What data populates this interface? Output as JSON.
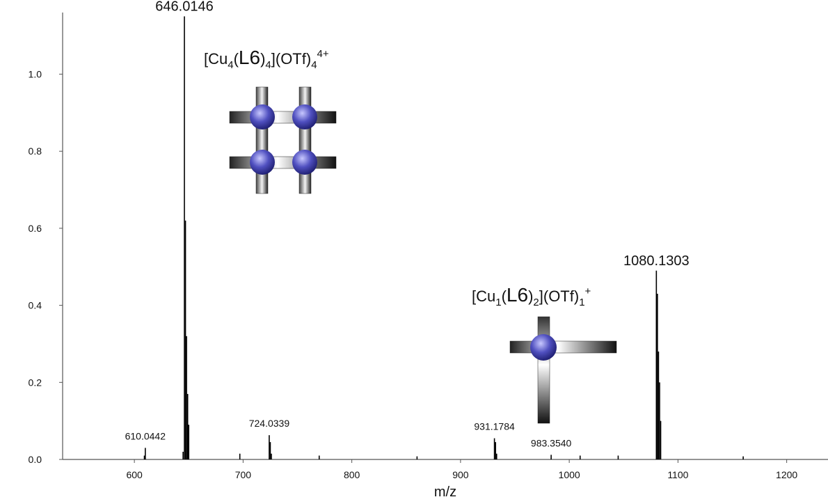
{
  "chart_data": {
    "type": "stem",
    "x_label": "m/z",
    "x": [
      609.2,
      610.0442,
      644.8,
      646.0146,
      647.0,
      648.0,
      649.0,
      650.0,
      697.0,
      724.0339,
      725.0,
      726.0,
      770.0,
      860.0,
      931.1784,
      932.2,
      933.2,
      983.354,
      1010.0,
      1045.0,
      1080.1303,
      1081.1,
      1082.1,
      1083.1,
      1084.1,
      1160.0
    ],
    "values": [
      0.01,
      0.03,
      0.02,
      1.15,
      0.62,
      0.32,
      0.17,
      0.09,
      0.015,
      0.063,
      0.045,
      0.015,
      0.01,
      0.008,
      0.055,
      0.045,
      0.015,
      0.012,
      0.01,
      0.01,
      0.49,
      0.43,
      0.28,
      0.2,
      0.1,
      0.008
    ],
    "x_labels": [
      null,
      "610.0442",
      null,
      "646.0146",
      null,
      null,
      null,
      null,
      null,
      "724.0339",
      null,
      null,
      null,
      null,
      "931.1784",
      null,
      null,
      "983.3540",
      null,
      null,
      "1080.1303",
      null,
      null,
      null,
      null,
      null
    ],
    "color": "#000000",
    "xlim": [
      534,
      1238
    ],
    "xticks": [
      600,
      700,
      800,
      900,
      1000,
      1100,
      1200
    ],
    "ylim": [
      0,
      1.16
    ],
    "yticks": [
      {
        "value": 0,
        "label": "0.0"
      },
      0.2,
      0.4,
      0.6,
      0.8,
      {
        "value": 1,
        "label": "1.0"
      }
    ],
    "annotations": [
      {
        "parts": [
          "[Cu",
          "4",
          "(",
          "L6",
          ")",
          "4",
          "](OTf)",
          "4",
          "4+"
        ]
      },
      {
        "parts": [
          "[Cu",
          "1",
          "(",
          "L6",
          ")",
          "2",
          "](OTf)",
          "1",
          "+"
        ]
      }
    ]
  }
}
